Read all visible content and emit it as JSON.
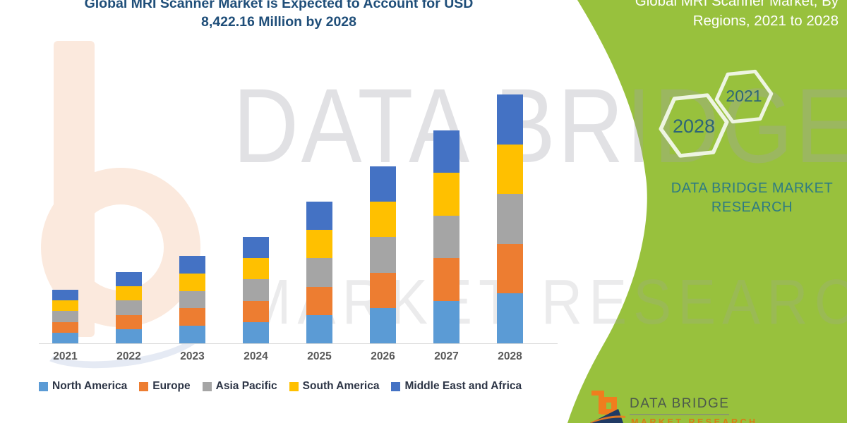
{
  "title": {
    "line1": "Global MRI Scanner Market is Expected to Account for USD",
    "line2": "8,422.16 Million by 2028",
    "color": "#1f4e79"
  },
  "right_panel": {
    "title_line1": "Global MRI Scanner Market, By",
    "title_line2": "Regions, 2021 to 2028",
    "hex_large_year": "2028",
    "hex_small_year": "2021",
    "brand_text": "DATA BRIDGE MARKET RESEARCH",
    "background_color": "#98c13d",
    "brand_text_color": "#2e7b82"
  },
  "watermark": {
    "line1": "DATA BRIDGE",
    "line2": "MARKET RESEARCH"
  },
  "footer_logo": {
    "brand": "DATA BRIDGE",
    "subtitle": "MARKET RESEARCH",
    "orange": "#f07d1e",
    "navy": "#203a64"
  },
  "chart_data": {
    "type": "bar",
    "stacked": true,
    "title": "Global MRI Scanner Market is Expected to Account for USD 8,422.16 Million by 2028",
    "unit": "USD Million",
    "categories": [
      "2021",
      "2022",
      "2023",
      "2024",
      "2025",
      "2026",
      "2027",
      "2028"
    ],
    "series": [
      {
        "name": "North America",
        "color": "#5B9BD5",
        "values": [
          363,
          482,
          592,
          721,
          959,
          1198,
          1441,
          1684.43
        ]
      },
      {
        "name": "Europe",
        "color": "#ED7D31",
        "values": [
          363,
          482,
          592,
          721,
          959,
          1198,
          1441,
          1684.43
        ]
      },
      {
        "name": "Asia Pacific",
        "color": "#A5A5A5",
        "values": [
          363,
          482,
          592,
          721,
          959,
          1198,
          1441,
          1684.43
        ]
      },
      {
        "name": "South America",
        "color": "#FFC000",
        "values": [
          363,
          482,
          592,
          721,
          959,
          1198,
          1441,
          1684.43
        ]
      },
      {
        "name": "Middle East and Africa",
        "color": "#4472C4",
        "values": [
          363,
          482,
          592,
          721,
          959,
          1198,
          1441,
          1684.43
        ]
      }
    ],
    "totals_estimated": [
      1815,
      2410,
      2960,
      3605,
      4795,
      5990,
      7205,
      8422.16
    ],
    "annotated_final_value": "8,422.16",
    "xlabel": "",
    "ylabel": "",
    "y_axis_visible": false,
    "gridlines": false,
    "legend_position": "bottom"
  }
}
